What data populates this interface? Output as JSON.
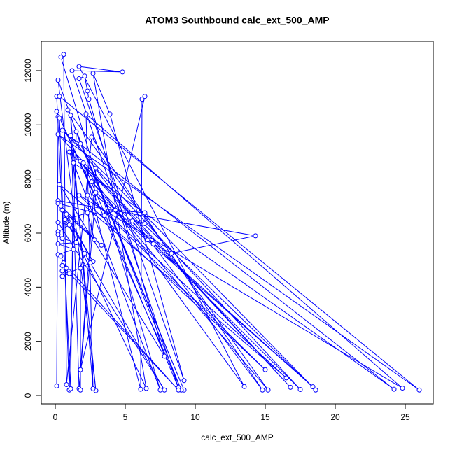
{
  "chart_data": {
    "type": "line",
    "title": "ATOM3 Southbound calc_ext_500_AMP",
    "x_label": "calc_ext_500_AMP",
    "y_label": "Altitude (m)",
    "xlim": [
      -1,
      27
    ],
    "ylim": [
      -310,
      13085
    ],
    "xticks": [
      0,
      5,
      10,
      15,
      20,
      25
    ],
    "yticks": [
      0,
      2000,
      4000,
      6000,
      8000,
      10000,
      12000
    ],
    "markers": true,
    "x": [
      0.1,
      0.2,
      0.3,
      1.0,
      1.5,
      9.2,
      1.8,
      0.2,
      2.9,
      1.1,
      14.8,
      2.6,
      0.8,
      0.6,
      0.4,
      7.5,
      1.0,
      18.6,
      0.5,
      24.2,
      1.3,
      1.1,
      0.1,
      0.3,
      26.0,
      0.2,
      16.8,
      1.8,
      13.5,
      1.7,
      4.8,
      1.2,
      8.8,
      2.0,
      6.1,
      6.2,
      6.4,
      1.8,
      2.9,
      17.5,
      2.6,
      15.2,
      0.9,
      9.0,
      0.1,
      2.8,
      18.4,
      2.9,
      1.7,
      1.1,
      2.7,
      2.2,
      24.8,
      1.7,
      15,
      2.3,
      16.5,
      0.3,
      7.8,
      2.4,
      2.3,
      2.1,
      1.7,
      9.2,
      3.9,
      2.7,
      6.5,
      0.2,
      14.3,
      8.3,
      7.0,
      6.6,
      5.5,
      6.4,
      6.4,
      4.3,
      3.5,
      0.2,
      0.4,
      3.3,
      0.5,
      2.7,
      0.8,
      2.8,
      2.3,
      0.7,
      7.8,
      0.2,
      1.0,
      0.2,
      0.2,
      0.5,
      1.5,
      0.2,
      1.3,
      0.2,
      0.4,
      0.6,
      8.8,
      0.5,
      0.8,
      0.5,
      1.0,
      0.5,
      2.5,
      2.1,
      1.8,
      1.8
    ],
    "series": [
      {
        "name": "Altitude",
        "color": "#0000ff",
        "values": [
          350,
          10300,
          10250,
          200,
          9750,
          200,
          9300,
          11650,
          180,
          9600,
          200,
          9550,
          400,
          12600,
          12500,
          200,
          9000,
          200,
          9800,
          230,
          8600,
          250,
          11050,
          11050,
          200,
          9650,
          300,
          8650,
          330,
          12150,
          11950,
          12000,
          280,
          8600,
          230,
          10950,
          11050,
          950,
          8400,
          220,
          7900,
          200,
          10550,
          200,
          10500,
          7450,
          320,
          7500,
          250,
          10350,
          250,
          10400,
          270,
          7400,
          950,
          7400,
          650,
          7800,
          1450,
          10950,
          11250,
          11800,
          11700,
          550,
          10400,
          11900,
          260,
          7200,
          5900,
          5250,
          5600,
          5750,
          6450,
          6350,
          6750,
          6850,
          6650,
          7100,
          7000,
          5550,
          6850,
          4950,
          6700,
          5750,
          6750,
          6500,
          200,
          6400,
          6300,
          6050,
          5950,
          5800,
          5650,
          5600,
          5400,
          5200,
          5150,
          4900,
          200,
          4800,
          4700,
          4600,
          4500,
          4400,
          4900,
          5250,
          4700,
          200
        ]
      }
    ]
  }
}
